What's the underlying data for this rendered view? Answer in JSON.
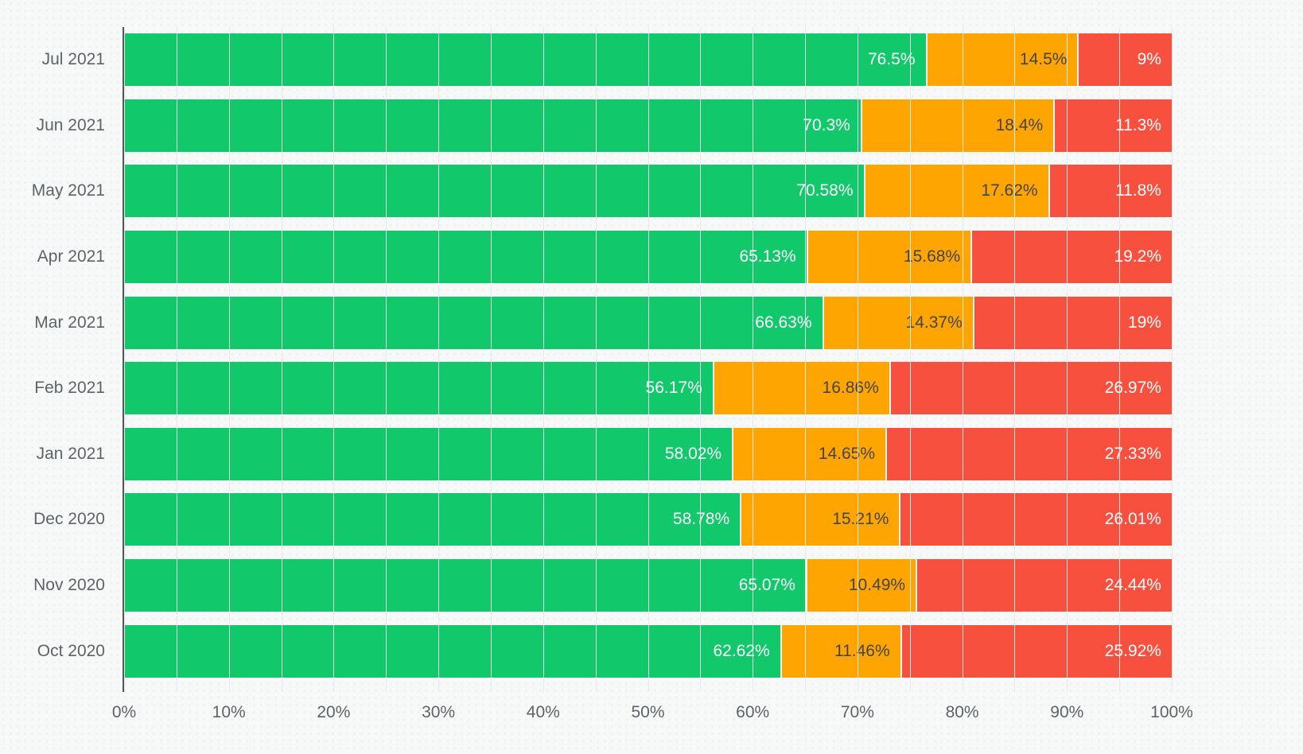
{
  "page": {
    "background": "#f7f8f8",
    "title": ""
  },
  "chart_data": {
    "type": "bar",
    "orientation": "horizontal",
    "stacked": true,
    "unit": "%",
    "title": "",
    "xlabel": "",
    "ylabel": "",
    "xlim": [
      0,
      100
    ],
    "x_tick_labels": [
      "0%",
      "10%",
      "20%",
      "30%",
      "40%",
      "50%",
      "60%",
      "70%",
      "80%",
      "90%",
      "100%"
    ],
    "minor_gridline_step_pct": 5,
    "grid": true,
    "legend_position": "none",
    "categories": [
      "Jul 2021",
      "Jun 2021",
      "May 2021",
      "Apr 2021",
      "Mar 2021",
      "Feb 2021",
      "Jan 2021",
      "Dec 2020",
      "Nov 2020",
      "Oct 2020"
    ],
    "series": [
      {
        "name": "green",
        "color": "#11c86b",
        "label_color": "#ffffff",
        "values": [
          76.5,
          70.3,
          70.58,
          65.13,
          66.63,
          56.17,
          58.02,
          58.78,
          65.07,
          62.62
        ],
        "labels": [
          "76.5%",
          "70.3%",
          "70.58%",
          "65.13%",
          "66.63%",
          "56.17%",
          "58.02%",
          "58.78%",
          "65.07%",
          "62.62%"
        ]
      },
      {
        "name": "orange",
        "color": "#ffa502",
        "label_color": "#454545",
        "values": [
          14.5,
          18.4,
          17.62,
          15.68,
          14.37,
          16.86,
          14.65,
          15.21,
          10.49,
          11.46
        ],
        "labels": [
          "14.5%",
          "18.4%",
          "17.62%",
          "15.68%",
          "14.37%",
          "16.86%",
          "14.65%",
          "15.21%",
          "10.49%",
          "11.46%"
        ]
      },
      {
        "name": "red",
        "color": "#f8503e",
        "label_color": "#ffffff",
        "values": [
          9,
          11.3,
          11.8,
          19.2,
          19,
          26.97,
          27.33,
          26.01,
          24.44,
          25.92
        ],
        "labels": [
          "9%",
          "11.3%",
          "11.8%",
          "19.2%",
          "19%",
          "26.97%",
          "27.33%",
          "26.01%",
          "24.44%",
          "25.92%"
        ]
      }
    ],
    "colors": {
      "gridline": "#e9e9eb",
      "axis_line": "#54575b",
      "tick_label": "#5f6368",
      "category_label": "#5f6368"
    }
  }
}
